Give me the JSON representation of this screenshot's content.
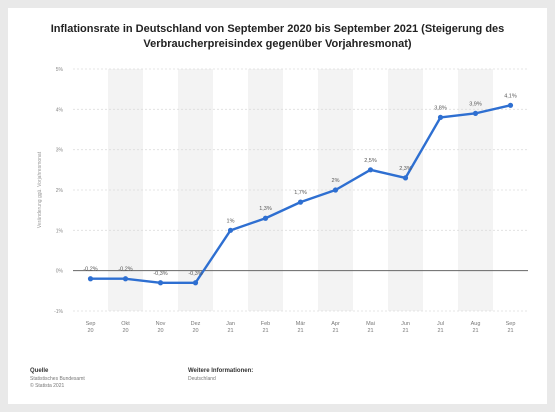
{
  "chart_data": {
    "type": "line",
    "title": "Inflationsrate in Deutschland von September 2020 bis September 2021 (Steigerung des Verbraucherpreisindex gegenüber Vorjahresmonat)",
    "xlabel": "",
    "ylabel": "Veränderung ggü. Vorjahresmonat",
    "categories": [
      [
        "Sep",
        "20"
      ],
      [
        "Okt",
        "20"
      ],
      [
        "Nov",
        "20"
      ],
      [
        "Dez",
        "20"
      ],
      [
        "Jan",
        "21"
      ],
      [
        "Feb",
        "21"
      ],
      [
        "Mär",
        "21"
      ],
      [
        "Apr",
        "21"
      ],
      [
        "Mai",
        "21"
      ],
      [
        "Jun",
        "21"
      ],
      [
        "Jul",
        "21"
      ],
      [
        "Aug",
        "21"
      ],
      [
        "Sep",
        "21"
      ]
    ],
    "values": [
      -0.2,
      -0.2,
      -0.3,
      -0.3,
      1.0,
      1.3,
      1.7,
      2.0,
      2.5,
      2.3,
      3.8,
      3.9,
      4.1
    ],
    "value_labels": [
      "-0,2%",
      "-0,2%",
      "-0,3%",
      "-0,3%",
      "1%",
      "1,3%",
      "1,7%",
      "2%",
      "2,5%",
      "2,3%",
      "3,8%",
      "3,9%",
      "4,1%"
    ],
    "y_ticks": [
      "-1%",
      "0%",
      "1%",
      "2%",
      "3%",
      "4%",
      "5%"
    ],
    "ylim": [
      -1,
      5
    ],
    "grid": true,
    "line_color": "#2e6fd1",
    "zero_line_color": "#666666"
  },
  "footer": {
    "source_heading": "Quelle",
    "source_lines": [
      "Statistisches Bundesamt",
      "© Statista 2021"
    ],
    "info_heading": "Weitere Informationen:",
    "info_lines": [
      "Deutschland"
    ]
  }
}
